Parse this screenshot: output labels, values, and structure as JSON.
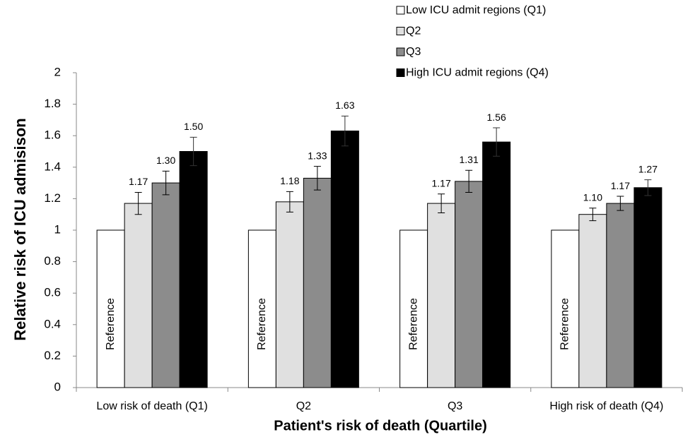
{
  "chart_data": {
    "type": "bar",
    "x_label": "Patient's risk of death (Quartile)",
    "y_label": "Relative risk of ICU admisison",
    "categories": [
      "Low risk of death (Q1)",
      "Q2",
      "Q3",
      "High risk of death (Q4)"
    ],
    "series": [
      {
        "name": "Low ICU admit regions (Q1)",
        "color": "#ffffff",
        "values": [
          1,
          1,
          1,
          1
        ],
        "value_labels": [
          "Reference",
          "Reference",
          "Reference",
          "Reference"
        ]
      },
      {
        "name": "Q2",
        "color": "#e0e0e0",
        "values": [
          1.17,
          1.18,
          1.17,
          1.1
        ],
        "value_labels": [
          "1.17",
          "1.18",
          "1.17",
          "1.10"
        ],
        "errors": [
          0.07,
          0.065,
          0.06,
          0.04
        ]
      },
      {
        "name": "Q3",
        "color": "#8c8c8c",
        "values": [
          1.3,
          1.33,
          1.31,
          1.17
        ],
        "value_labels": [
          "1.30",
          "1.33",
          "1.31",
          "1.17"
        ],
        "errors": [
          0.075,
          0.075,
          0.07,
          0.045
        ]
      },
      {
        "name": "High ICU admit regions (Q4)",
        "color": "#000000",
        "values": [
          1.5,
          1.63,
          1.56,
          1.27
        ],
        "value_labels": [
          "1.50",
          "1.63",
          "1.56",
          "1.27"
        ],
        "errors": [
          0.09,
          0.095,
          0.09,
          0.05
        ]
      }
    ],
    "ylim": [
      0,
      2
    ],
    "yticks": [
      0,
      {
        "value": 0.2,
        "label": "0.2"
      },
      {
        "value": 0.4,
        "label": "0.4"
      },
      {
        "value": 0.6,
        "label": "0.6"
      },
      {
        "value": 0.8,
        "label": "0.8"
      },
      1,
      {
        "value": 1.2,
        "label": "1.2"
      },
      {
        "value": 1.4,
        "label": "1.4"
      },
      {
        "value": 1.6,
        "label": "1.6"
      },
      {
        "value": 1.8,
        "label": "1.8"
      },
      2
    ],
    "grid": false
  }
}
